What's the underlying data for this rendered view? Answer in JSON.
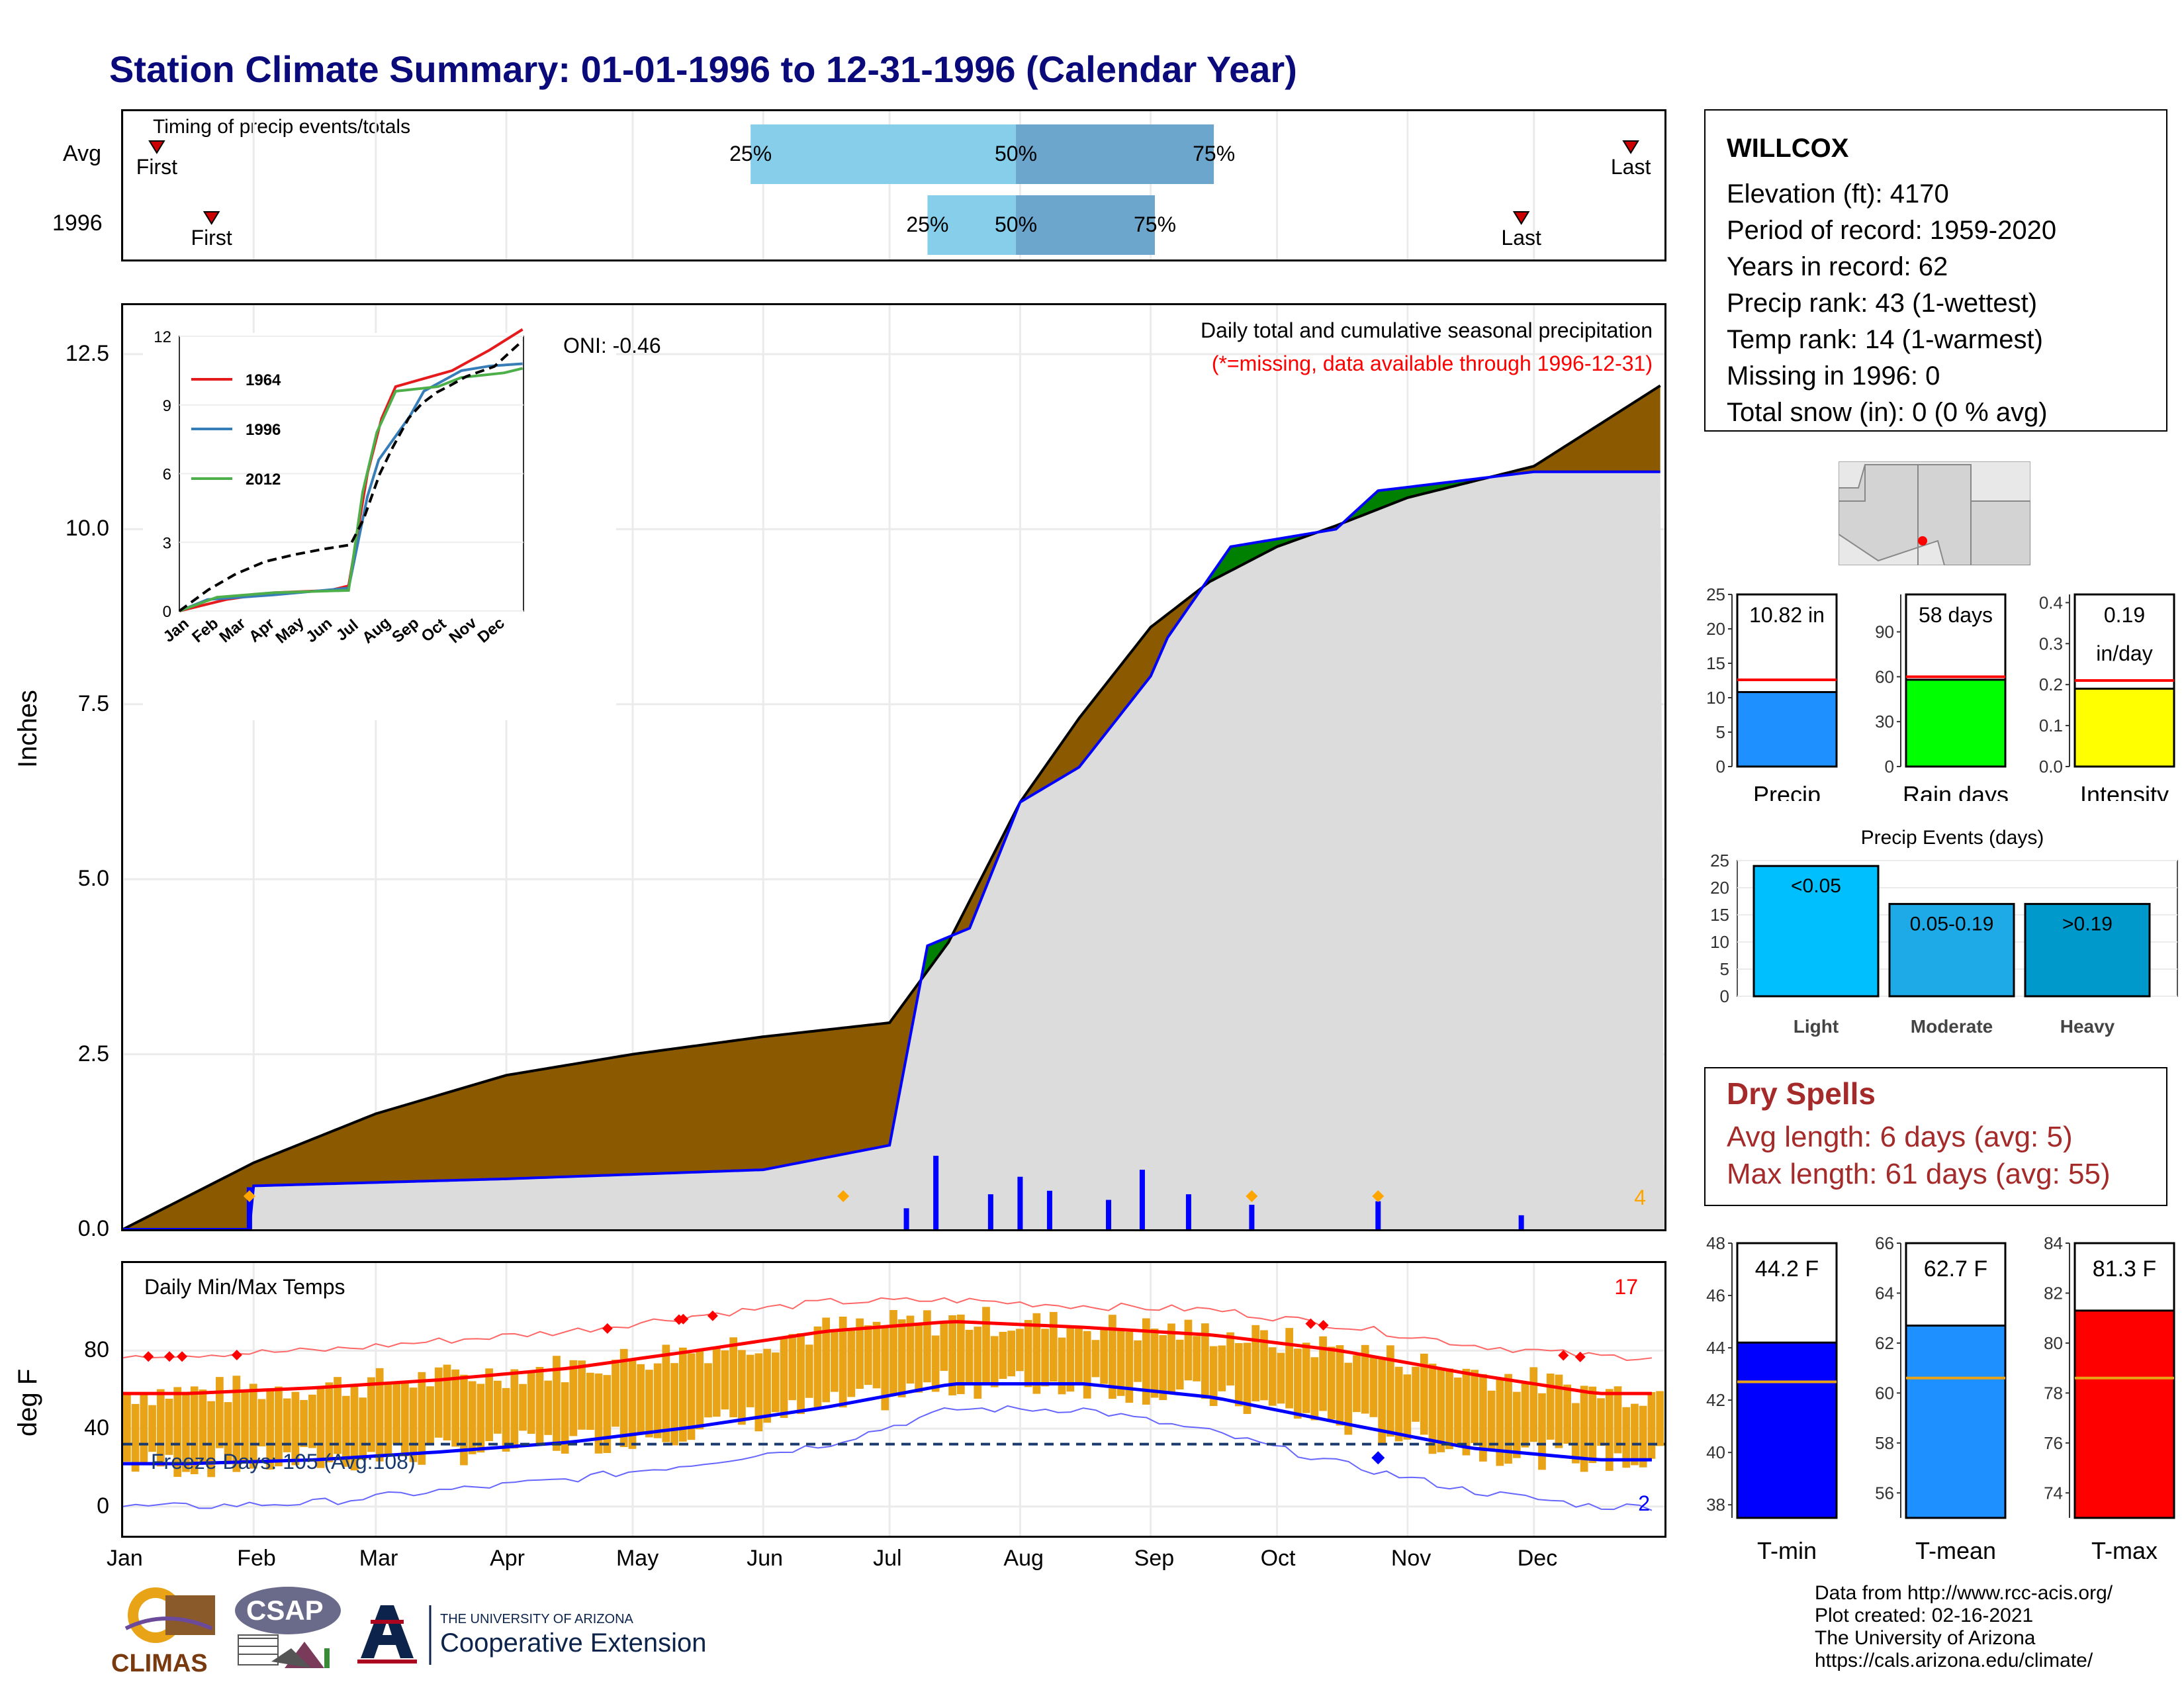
{
  "title": "Station Climate Summary: 01-01-1996 to 12-31-1996 (Calendar Year)",
  "colors": {
    "title": "#0a0a7a",
    "precip_avg": "#8b5a00",
    "precip_obs": "#0000ff",
    "surplus": "#008000",
    "light_blue": "#87ceeb",
    "mid_blue": "#6ca6cd",
    "temp_fill": "#e8a317",
    "tmax_line": "#ff0000",
    "tmin_line": "#0000ff"
  },
  "timing": {
    "title": "Timing of precip events/totals",
    "rows": [
      {
        "label": "Avg",
        "first": "First",
        "last": "Last",
        "p25": "25%",
        "p50": "50%",
        "p75": "75%",
        "first_date": "1996-01-09",
        "last_date": "1996-12-24",
        "p25_date": "1996-05-29",
        "p50_date": "1996-07-31",
        "p75_date": "1996-09-16"
      },
      {
        "label": "1996",
        "first": "First",
        "last": "Last",
        "p25": "25%",
        "p50": "50%",
        "p75": "75%",
        "first_date": "1996-01-22",
        "last_date": "1996-11-28",
        "p25_date": "1996-07-10",
        "p50_date": "1996-07-31",
        "p75_date": "1996-09-02"
      }
    ]
  },
  "main_chart": {
    "ylabel": "Inches",
    "title": "Daily total and cumulative seasonal precipitation",
    "subtitle": "(*=missing, data available through 1996-12-31)",
    "oni": "ONI: -0.46",
    "corner_count": "4",
    "ylim": [
      0,
      13.2
    ],
    "yticks": [
      "0.0",
      "2.5",
      "5.0",
      "7.5",
      "10.0",
      "12.5"
    ],
    "months": [
      "Jan",
      "Feb",
      "Mar",
      "Apr",
      "May",
      "Jun",
      "Jul",
      "Aug",
      "Sep",
      "Oct",
      "Nov",
      "Dec"
    ]
  },
  "inset": {
    "yticks": [
      "0",
      "3",
      "6",
      "9",
      "12"
    ],
    "months": [
      "Jan",
      "Feb",
      "Mar",
      "Apr",
      "May",
      "Jun",
      "Jul",
      "Aug",
      "Sep",
      "Oct",
      "Nov",
      "Dec"
    ],
    "legend": [
      {
        "name": "1964",
        "color": "#e41a1c"
      },
      {
        "name": "1996",
        "color": "#377eb8"
      },
      {
        "name": "2012",
        "color": "#4daf4a"
      }
    ]
  },
  "temp_chart": {
    "ylabel": "deg F",
    "title": "Daily Min/Max Temps",
    "freeze": "Freeze Days: 105 (Avg:108)",
    "count_hot": "17",
    "count_cold": "2",
    "yticks": [
      "0",
      "40",
      "80"
    ],
    "months": [
      "Jan",
      "Feb",
      "Mar",
      "Apr",
      "May",
      "Jun",
      "Jul",
      "Aug",
      "Sep",
      "Oct",
      "Nov",
      "Dec"
    ]
  },
  "station": {
    "name": "WILLCOX",
    "lines": [
      "Elevation (ft): 4170",
      "Period of record: 1959-2020",
      "Years in record: 62",
      "Precip rank: 43 (1-wettest)",
      "Temp rank: 14 (1-warmest)",
      "Missing in 1996: 0",
      "Total snow (in): 0 (0 % avg)"
    ]
  },
  "mini_bars": [
    {
      "label": "Precip",
      "value_text": "10.82 in",
      "value": 10.82,
      "avg": 12.6,
      "ymax": 25,
      "yticks": [
        "0",
        "5",
        "10",
        "15",
        "20",
        "25"
      ],
      "color": "#1e90ff"
    },
    {
      "label": "Rain days",
      "value_text": "58 days",
      "value": 58,
      "avg": 60,
      "ymax": 115,
      "yticks": [
        "0",
        "30",
        "60",
        "90"
      ],
      "color": "#00ff00"
    },
    {
      "label": "Intensity",
      "value_text": "0.19\nin/day",
      "value": 0.19,
      "avg": 0.21,
      "ymax": 0.42,
      "yticks": [
        "0.0",
        "0.1",
        "0.2",
        "0.3",
        "0.4"
      ],
      "color": "#ffff00"
    }
  ],
  "events": {
    "title": "Precip Events (days)",
    "yticks": [
      "0",
      "5",
      "10",
      "15",
      "20",
      "25"
    ],
    "bars": [
      {
        "category": "Light",
        "label": "<0.05",
        "value": 24,
        "color": "#00bfff"
      },
      {
        "category": "Moderate",
        "label": "0.05-0.19",
        "value": 17,
        "color": "#1eaae6"
      },
      {
        "category": "Heavy",
        "label": ">0.19",
        "value": 17,
        "color": "#0099cc"
      }
    ]
  },
  "dry_spells": {
    "title": "Dry Spells",
    "avg": "Avg length: 6 days (avg: 5)",
    "max": "Max length: 61 days (avg: 55)"
  },
  "temp_bars": [
    {
      "label": "T-min",
      "value_text": "44.2 F",
      "value": 44.2,
      "avg": 42.7,
      "ylim": [
        37.5,
        48
      ],
      "yticks": [
        "38",
        "40",
        "42",
        "44",
        "46",
        "48"
      ],
      "color": "#0000ff"
    },
    {
      "label": "T-mean",
      "value_text": "62.7 F",
      "value": 62.7,
      "avg": 60.6,
      "ylim": [
        55,
        66
      ],
      "yticks": [
        "56",
        "58",
        "60",
        "62",
        "64",
        "66"
      ],
      "color": "#1e90ff"
    },
    {
      "label": "T-max",
      "value_text": "81.3 F",
      "value": 81.3,
      "avg": 78.6,
      "ylim": [
        73,
        84
      ],
      "yticks": [
        "74",
        "76",
        "78",
        "80",
        "82",
        "84"
      ],
      "color": "#ff0000"
    }
  ],
  "credits": [
    "Data from http://www.rcc-acis.org/",
    "Plot created: 02-16-2021",
    "The University of Arizona",
    "https://cals.arizona.edu/climate/"
  ],
  "logos": {
    "climas": "CLIMAS",
    "csap": "CSAP",
    "uofa_small": "THE UNIVERSITY OF ARIZONA",
    "coop": "Cooperative Extension"
  },
  "chart_data": [
    {
      "type": "area",
      "title": "Daily total and cumulative seasonal precipitation",
      "ylabel": "Inches",
      "ylim": [
        0,
        13.2
      ],
      "series": [
        {
          "name": "average cumulative",
          "x": [
            "Jan 1",
            "Feb 1",
            "Mar 1",
            "Apr 1",
            "May 1",
            "Jun 1",
            "Jul 1",
            "Jul 15",
            "Aug 1",
            "Aug 15",
            "Sep 1",
            "Sep 15",
            "Oct 1",
            "Oct 15",
            "Nov 1",
            "Dec 1",
            "Dec 31"
          ],
          "values": [
            0,
            0.95,
            1.65,
            2.2,
            2.5,
            2.75,
            2.95,
            4.1,
            6.1,
            7.3,
            8.6,
            9.25,
            9.75,
            10.05,
            10.45,
            10.9,
            12.05
          ]
        },
        {
          "name": "observed 1996 cumulative",
          "x": [
            "Jan 1",
            "Jan 31",
            "Feb 1",
            "Apr 1",
            "Jun 1",
            "Jul 1",
            "Jul 10",
            "Jul 20",
            "Aug 1",
            "Aug 15",
            "Sep 1",
            "Sep 5",
            "Sep 20",
            "Oct 15",
            "Oct 25",
            "Nov 1",
            "Dec 1",
            "Dec 31"
          ],
          "values": [
            0,
            0,
            0.62,
            0.72,
            0.85,
            1.2,
            4.05,
            4.3,
            6.1,
            6.6,
            7.9,
            8.45,
            9.75,
            10.0,
            10.55,
            10.6,
            10.82,
            10.82
          ]
        }
      ],
      "daily": [
        {
          "x": "Jan 31",
          "v": 0.6
        },
        {
          "x": "Jul 5",
          "v": 0.3
        },
        {
          "x": "Jul 12",
          "v": 1.05
        },
        {
          "x": "Jul 25",
          "v": 0.5
        },
        {
          "x": "Aug 1",
          "v": 0.75
        },
        {
          "x": "Aug 8",
          "v": 0.55
        },
        {
          "x": "Aug 22",
          "v": 0.42
        },
        {
          "x": "Aug 30",
          "v": 0.85
        },
        {
          "x": "Sep 10",
          "v": 0.5
        },
        {
          "x": "Sep 25",
          "v": 0.35
        },
        {
          "x": "Oct 25",
          "v": 0.4
        },
        {
          "x": "Nov 28",
          "v": 0.2
        }
      ]
    },
    {
      "type": "line",
      "title": "Daily Min/Max Temps",
      "ylabel": "deg F",
      "x": [
        "Jan",
        "Feb",
        "Mar",
        "Apr",
        "May",
        "Jun",
        "Jul",
        "Aug",
        "Sep",
        "Oct",
        "Nov",
        "Dec"
      ],
      "series": [
        {
          "name": "avg max",
          "values": [
            58,
            61,
            65,
            71,
            80,
            90,
            95,
            92,
            88,
            80,
            68,
            58
          ]
        },
        {
          "name": "avg min",
          "values": [
            22,
            24,
            28,
            33,
            41,
            51,
            63,
            63,
            56,
            43,
            30,
            24
          ]
        },
        {
          "name": "record max",
          "values": [
            78,
            80,
            85,
            90,
            98,
            105,
            106,
            103,
            101,
            93,
            83,
            77
          ]
        },
        {
          "name": "record min",
          "values": [
            0,
            2,
            8,
            14,
            22,
            32,
            50,
            50,
            38,
            22,
            8,
            0
          ]
        }
      ],
      "freeze_line": 32
    }
  ]
}
